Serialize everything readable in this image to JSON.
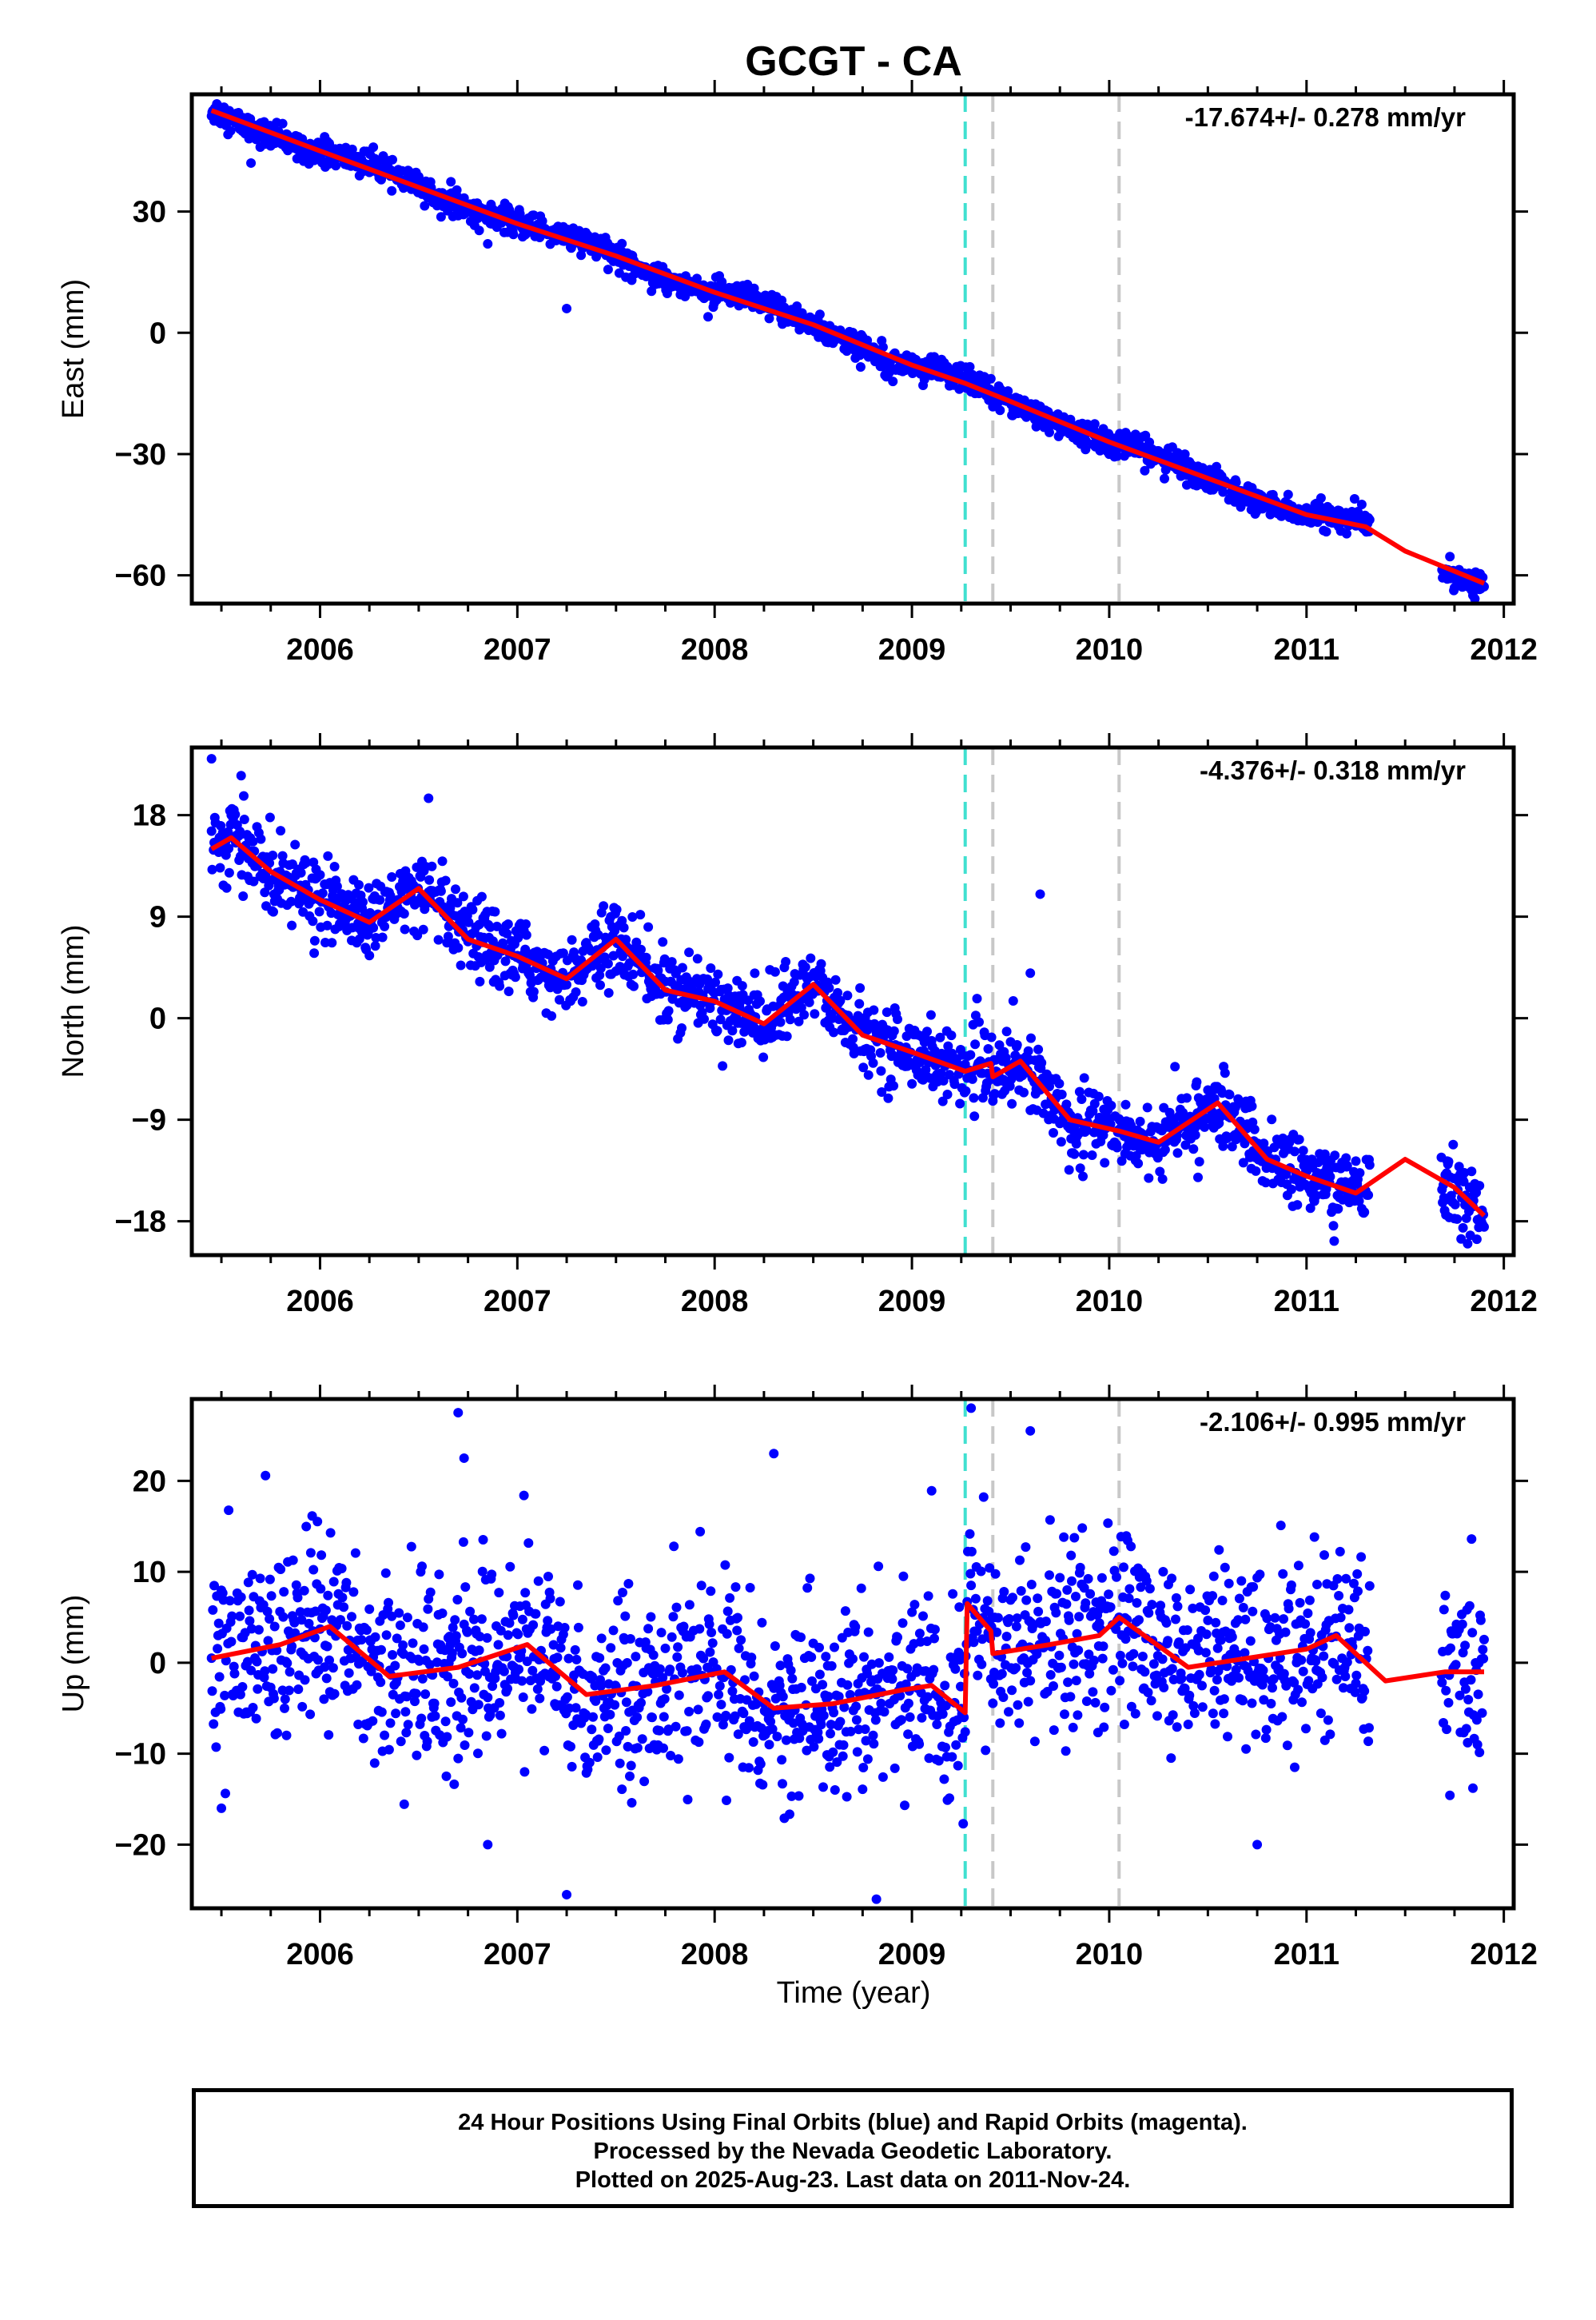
{
  "chart_data": [
    {
      "type": "scatter",
      "title": "GCGT - CA",
      "ylabel": "East (mm)",
      "xlabel": "",
      "xlim": [
        2005.35,
        2012.05
      ],
      "ylim": [
        -67,
        59
      ],
      "xticks": [
        2006,
        2007,
        2008,
        2009,
        2010,
        2011,
        2012
      ],
      "yticks": [
        30,
        0,
        -30,
        -60
      ],
      "rate_label": "-17.674+/- 0.278 mm/yr",
      "grid": false,
      "colors": {
        "points": "#0000ff",
        "model": "#ff0000",
        "eq_line": "#40e0d0",
        "offset_line": "#c8c8c8"
      },
      "eq_lines_x": [
        2009.27
      ],
      "offset_lines_x": [
        2009.41,
        2010.05
      ],
      "data_gap": [
        2011.32,
        2011.68
      ],
      "model": [
        [
          2005.45,
          55
        ],
        [
          2006.0,
          45
        ],
        [
          2006.5,
          36
        ],
        [
          2007.0,
          27
        ],
        [
          2007.5,
          19
        ],
        [
          2008.0,
          10
        ],
        [
          2008.5,
          2
        ],
        [
          2009.0,
          -8
        ],
        [
          2009.27,
          -12.5
        ],
        [
          2009.5,
          -17
        ],
        [
          2010.0,
          -27
        ],
        [
          2010.5,
          -36
        ],
        [
          2011.0,
          -45
        ],
        [
          2011.3,
          -48
        ],
        [
          2011.5,
          -54
        ],
        [
          2011.9,
          -62
        ]
      ],
      "outliers": [
        [
          2007.25,
          6
        ],
        [
          2005.65,
          42
        ],
        [
          2006.85,
          22
        ]
      ],
      "noise_mm": 1.6,
      "seasonal_amp": 1.0
    },
    {
      "type": "scatter",
      "title": "",
      "ylabel": "North (mm)",
      "xlabel": "",
      "xlim": [
        2005.35,
        2012.05
      ],
      "ylim": [
        -21,
        24
      ],
      "xticks": [
        2006,
        2007,
        2008,
        2009,
        2010,
        2011,
        2012
      ],
      "yticks": [
        18,
        9,
        0,
        -9,
        -18
      ],
      "rate_label": "-4.376+/- 0.318 mm/yr",
      "grid": false,
      "colors": {
        "points": "#0000ff",
        "model": "#ff0000",
        "eq_line": "#40e0d0",
        "offset_line": "#c8c8c8"
      },
      "eq_lines_x": [
        2009.27
      ],
      "offset_lines_x": [
        2009.41,
        2010.05
      ],
      "data_gap": [
        2011.32,
        2011.68
      ],
      "model": [
        [
          2005.45,
          15
        ],
        [
          2005.55,
          16
        ],
        [
          2005.75,
          13
        ],
        [
          2006.0,
          10.5
        ],
        [
          2006.25,
          8.5
        ],
        [
          2006.5,
          11.5
        ],
        [
          2006.75,
          7
        ],
        [
          2007.0,
          5.5
        ],
        [
          2007.25,
          3.5
        ],
        [
          2007.5,
          7
        ],
        [
          2007.75,
          2.5
        ],
        [
          2008.0,
          1.5
        ],
        [
          2008.25,
          -0.5
        ],
        [
          2008.5,
          3
        ],
        [
          2008.75,
          -1.5
        ],
        [
          2009.0,
          -3
        ],
        [
          2009.27,
          -4.7
        ],
        [
          2009.4,
          -4
        ],
        [
          2009.41,
          -5.2
        ],
        [
          2009.55,
          -3.8
        ],
        [
          2009.8,
          -9
        ],
        [
          2010.05,
          -10
        ],
        [
          2010.25,
          -11
        ],
        [
          2010.55,
          -7.5
        ],
        [
          2010.8,
          -12.5
        ],
        [
          2011.0,
          -14
        ],
        [
          2011.25,
          -15.5
        ],
        [
          2011.5,
          -12.5
        ],
        [
          2011.75,
          -15
        ],
        [
          2011.9,
          -17.5
        ]
      ],
      "outliers": [
        [
          2005.45,
          23
        ],
        [
          2005.6,
          21.5
        ],
        [
          2006.55,
          19.5
        ],
        [
          2009.65,
          11
        ],
        [
          2009.6,
          4
        ]
      ],
      "noise_mm": 1.6,
      "seasonal_amp": 0.0
    },
    {
      "type": "scatter",
      "title": "",
      "ylabel": "Up (mm)",
      "xlabel": "Time (year)",
      "xlim": [
        2005.35,
        2012.05
      ],
      "ylim": [
        -27,
        29
      ],
      "xticks": [
        2006,
        2007,
        2008,
        2009,
        2010,
        2011,
        2012
      ],
      "yticks": [
        20,
        10,
        0,
        -10,
        -20
      ],
      "rate_label": "-2.106+/- 0.995 mm/yr",
      "grid": false,
      "colors": {
        "points": "#0000ff",
        "model": "#ff0000",
        "eq_line": "#40e0d0",
        "offset_line": "#c8c8c8"
      },
      "eq_lines_x": [
        2009.27
      ],
      "offset_lines_x": [
        2009.41,
        2010.05
      ],
      "data_gap": [
        2011.32,
        2011.68
      ],
      "model": [
        [
          2005.45,
          0.5
        ],
        [
          2005.8,
          2
        ],
        [
          2006.05,
          4
        ],
        [
          2006.35,
          -1.5
        ],
        [
          2006.7,
          -0.5
        ],
        [
          2007.05,
          2
        ],
        [
          2007.35,
          -3.5
        ],
        [
          2007.7,
          -2.5
        ],
        [
          2008.05,
          -1
        ],
        [
          2008.3,
          -5
        ],
        [
          2008.6,
          -4.5
        ],
        [
          2008.95,
          -3
        ],
        [
          2009.1,
          -2.5
        ],
        [
          2009.27,
          -5.5
        ],
        [
          2009.28,
          6.5
        ],
        [
          2009.4,
          3.5
        ],
        [
          2009.41,
          1
        ],
        [
          2009.7,
          2
        ],
        [
          2009.95,
          3
        ],
        [
          2010.05,
          5
        ],
        [
          2010.4,
          -0.5
        ],
        [
          2010.7,
          0.5
        ],
        [
          2011.0,
          1.5
        ],
        [
          2011.15,
          3
        ],
        [
          2011.4,
          -2
        ],
        [
          2011.7,
          -1
        ],
        [
          2011.9,
          -1
        ]
      ],
      "outliers": [
        [
          2006.7,
          27.5
        ],
        [
          2006.73,
          22.5
        ],
        [
          2008.3,
          23
        ],
        [
          2009.3,
          28
        ],
        [
          2009.6,
          25.5
        ],
        [
          2007.25,
          -25.5
        ],
        [
          2008.82,
          -26
        ],
        [
          2006.85,
          -20
        ],
        [
          2010.75,
          -20
        ],
        [
          2005.5,
          -16
        ]
      ],
      "noise_mm": 5.0,
      "seasonal_amp": 0.0
    }
  ],
  "caption": {
    "line1": "24 Hour Positions Using Final Orbits (blue) and Rapid Orbits (magenta).",
    "line2": "Processed by the Nevada Geodetic Laboratory.",
    "line3": "Plotted on 2025-Aug-23. Last data on 2011-Nov-24."
  }
}
